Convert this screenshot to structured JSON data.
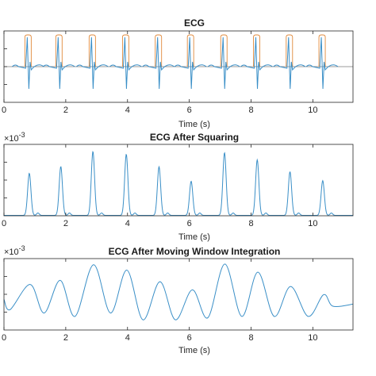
{
  "chart_data": [
    {
      "type": "line",
      "title": "ECG",
      "xlabel": "Time (s)",
      "ylabel": "",
      "xlim": [
        0,
        11.3
      ],
      "xticks": [
        0,
        2,
        4,
        6,
        8,
        10
      ],
      "exponent_label": "",
      "r_peak_times": [
        0.78,
        1.78,
        2.86,
        3.94,
        5.0,
        6.04,
        7.12,
        8.18,
        9.24,
        10.3
      ],
      "series": [
        {
          "name": "",
          "color": "#3a8fc7",
          "kind": "ecg-signal"
        },
        {
          "name": "",
          "color": "#e08a3c",
          "kind": "detection-window"
        },
        {
          "name": "",
          "color": "#7a7a7a",
          "kind": "baseline"
        }
      ]
    },
    {
      "type": "line",
      "title": "ECG After Squaring",
      "xlabel": "Time (s)",
      "ylabel": "",
      "xlim": [
        0,
        11.3
      ],
      "ylim": [
        0,
        3.6
      ],
      "xticks": [
        0,
        2,
        4,
        6,
        8,
        10
      ],
      "exponent_label": "×10",
      "exponent_power": "-3",
      "peaks": [
        {
          "t": 0.82,
          "v": 2.12
        },
        {
          "t": 1.84,
          "v": 2.46
        },
        {
          "t": 2.88,
          "v": 3.22
        },
        {
          "t": 3.96,
          "v": 3.08
        },
        {
          "t": 5.02,
          "v": 2.45
        },
        {
          "t": 6.06,
          "v": 1.72
        },
        {
          "t": 7.14,
          "v": 3.16
        },
        {
          "t": 8.2,
          "v": 2.8
        },
        {
          "t": 9.26,
          "v": 2.2
        },
        {
          "t": 10.32,
          "v": 1.75
        }
      ],
      "series": [
        {
          "name": "",
          "color": "#3a8fc7"
        }
      ]
    },
    {
      "type": "line",
      "title": "ECG After Moving Window Integration",
      "xlabel": "Time (s)",
      "ylabel": "",
      "xlim": [
        0,
        11.3
      ],
      "ylim": [
        0,
        1.05
      ],
      "xticks": [
        0,
        2,
        4,
        6,
        8,
        10
      ],
      "exponent_label": "×10",
      "exponent_power": "-3",
      "points": [
        [
          0,
          0.45
        ],
        [
          0.2,
          0.3
        ],
        [
          0.85,
          0.67
        ],
        [
          1.3,
          0.25
        ],
        [
          1.82,
          0.73
        ],
        [
          2.3,
          0.2
        ],
        [
          2.9,
          0.96
        ],
        [
          3.45,
          0.25
        ],
        [
          3.98,
          0.88
        ],
        [
          4.5,
          0.15
        ],
        [
          5.05,
          0.71
        ],
        [
          5.55,
          0.15
        ],
        [
          6.1,
          0.59
        ],
        [
          6.6,
          0.18
        ],
        [
          7.15,
          0.97
        ],
        [
          7.7,
          0.2
        ],
        [
          8.22,
          0.85
        ],
        [
          8.75,
          0.2
        ],
        [
          9.28,
          0.64
        ],
        [
          9.85,
          0.2
        ],
        [
          10.35,
          0.52
        ],
        [
          10.65,
          0.35
        ],
        [
          11.3,
          0.38
        ]
      ],
      "series": [
        {
          "name": "",
          "color": "#3a8fc7"
        }
      ]
    }
  ]
}
